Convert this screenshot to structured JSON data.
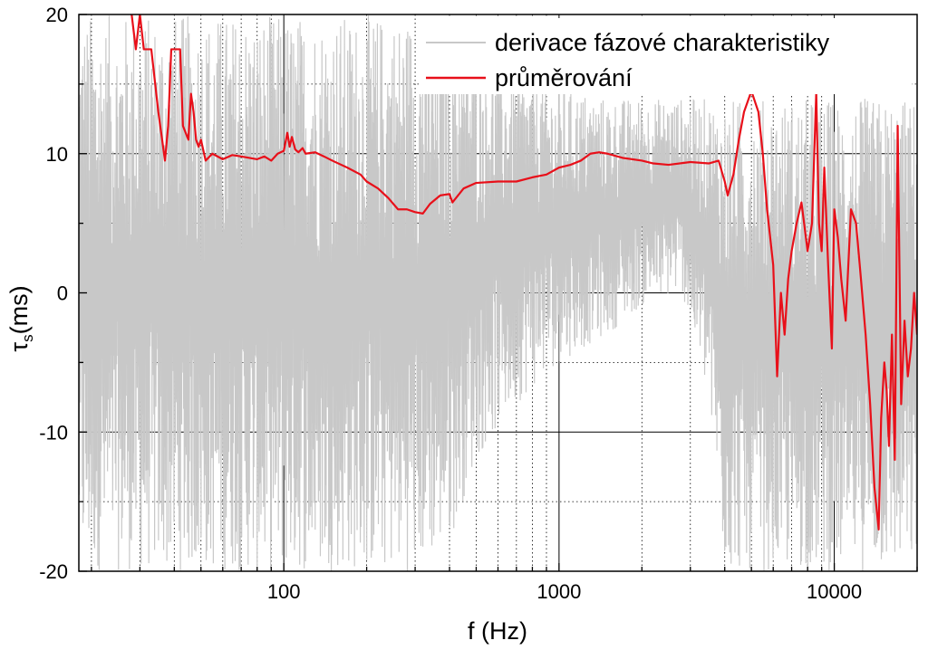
{
  "chart_data": {
    "type": "line",
    "title": "",
    "xlabel": "f (Hz)",
    "ylabel_main": "τ",
    "ylabel_sub": "s",
    "ylabel_unit": "(ms)",
    "x_scale": "log",
    "xlim": [
      18,
      20000
    ],
    "ylim": [
      -20,
      20
    ],
    "x_ticks": [
      100,
      1000,
      10000
    ],
    "x_tick_labels": [
      "100",
      "1000",
      "10000"
    ],
    "y_ticks": [
      -20,
      -10,
      0,
      10,
      20
    ],
    "y_tick_labels": [
      "-20",
      "-10",
      "0",
      "10",
      "20"
    ],
    "grid": true,
    "legend_position": "top-right",
    "colors": {
      "raw": "#c8c8c8",
      "avg": "#e8101a",
      "axis": "#000000",
      "grid": "#000000"
    },
    "series": [
      {
        "name": "derivace fázové charakteristiky",
        "style": "dense oscillating line, envelope values",
        "envelope_x": [
          20,
          30,
          40,
          60,
          80,
          100,
          130,
          160,
          200,
          250,
          300,
          400,
          500,
          700,
          1000,
          1500,
          2000,
          2800,
          3500,
          4000,
          6000,
          10000,
          20000
        ],
        "envelope_upper": [
          20,
          20,
          20,
          20,
          20,
          20,
          20,
          20,
          20,
          20,
          20,
          20,
          18,
          16,
          15,
          14,
          14,
          14,
          14,
          14,
          14,
          14,
          14
        ],
        "envelope_lower": [
          -20,
          -20,
          -20,
          -20,
          -20,
          -20,
          -20,
          -20,
          -20,
          -20,
          -20,
          -18,
          -12,
          -8,
          -5,
          -3,
          -1,
          0,
          -8,
          -20,
          -20,
          -20,
          -20
        ]
      },
      {
        "name": "průměrování",
        "x": [
          28,
          29,
          30,
          31,
          33,
          35,
          37,
          38,
          39,
          42,
          43,
          45,
          46,
          47,
          48,
          49,
          50,
          52,
          55,
          60,
          65,
          70,
          80,
          85,
          90,
          95,
          100,
          103,
          105,
          107,
          110,
          113,
          117,
          120,
          130,
          140,
          150,
          170,
          190,
          200,
          220,
          240,
          260,
          280,
          300,
          320,
          340,
          370,
          400,
          410,
          450,
          500,
          600,
          700,
          800,
          900,
          1000,
          1100,
          1200,
          1300,
          1400,
          1500,
          1700,
          2000,
          2200,
          2500,
          3000,
          3500,
          3800,
          4000,
          4100,
          4300,
          4500,
          4700,
          5000,
          5300,
          5500,
          5700,
          6000,
          6200,
          6400,
          6600,
          6800,
          7000,
          7300,
          7600,
          8000,
          8300,
          8600,
          8800,
          9000,
          9200,
          9500,
          9800,
          10000,
          10300,
          10600,
          11000,
          11500,
          12000,
          12500,
          13000,
          13500,
          14000,
          14500,
          14800,
          15200,
          15500,
          15800,
          16200,
          16600,
          17000,
          17500,
          18000,
          18500,
          19000,
          19500,
          20000
        ],
        "y": [
          20,
          17.5,
          20,
          17.5,
          17.5,
          13,
          9.5,
          12,
          17.5,
          17.5,
          12,
          11,
          14.3,
          13,
          11,
          10.5,
          11,
          9.5,
          10,
          9.6,
          9.9,
          9.8,
          9.6,
          9.8,
          9.5,
          10,
          10.2,
          11.5,
          10.5,
          11.2,
          10.3,
          10.1,
          10.4,
          10,
          10.1,
          9.8,
          9.5,
          9,
          8.5,
          8,
          7.5,
          6.8,
          6,
          6,
          5.8,
          5.7,
          6.4,
          7,
          7.1,
          6.5,
          7.5,
          7.9,
          8,
          8,
          8.3,
          8.5,
          9,
          9.2,
          9.5,
          10,
          10.1,
          10,
          9.7,
          9.5,
          9.3,
          9.2,
          9.4,
          9.3,
          9.5,
          8,
          7,
          8.5,
          11,
          13,
          14.5,
          13,
          10,
          6,
          2,
          -6,
          0,
          -3,
          1,
          3,
          5,
          6.5,
          3,
          5,
          14.4,
          5,
          3,
          9,
          2,
          -4,
          6,
          4,
          1,
          -2,
          6,
          5,
          1,
          -3,
          -8,
          -14,
          -17,
          -9,
          -5,
          -7,
          -11,
          -3,
          -12,
          12,
          -8,
          -2,
          -6,
          -4,
          0,
          -3
        ]
      }
    ]
  }
}
